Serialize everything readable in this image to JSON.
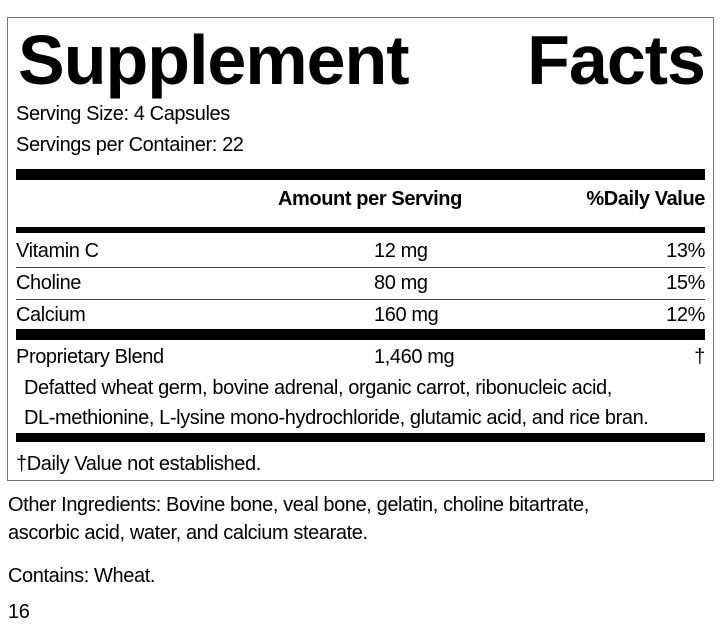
{
  "title_words": [
    "Supplement",
    "Facts"
  ],
  "serving_size": "Serving Size: 4 Capsules",
  "servings_per_container": "Servings per Container: 22",
  "headers": {
    "amount": "Amount per Serving",
    "dv": "%Daily Value"
  },
  "rows": [
    {
      "name": "Vitamin C",
      "amount": "12 mg",
      "dv": "13%"
    },
    {
      "name": "Choline",
      "amount": "80 mg",
      "dv": "15%"
    },
    {
      "name": "Calcium",
      "amount": "160 mg",
      "dv": "12%"
    }
  ],
  "blend": {
    "name": "Proprietary Blend",
    "amount": "1,460 mg",
    "dv": "†",
    "lines": [
      "Defatted wheat germ, bovine adrenal, organic carrot, ribonucleic acid,",
      "DL-methionine, L-lysine mono-hydrochloride, glutamic acid, and rice bran."
    ]
  },
  "footnote": "†Daily Value not established.",
  "other_lines": [
    "Other Ingredients: Bovine bone, veal bone, gelatin, choline bitartrate,",
    "ascorbic acid, water, and calcium stearate."
  ],
  "contains": "Contains: Wheat.",
  "code": "16"
}
